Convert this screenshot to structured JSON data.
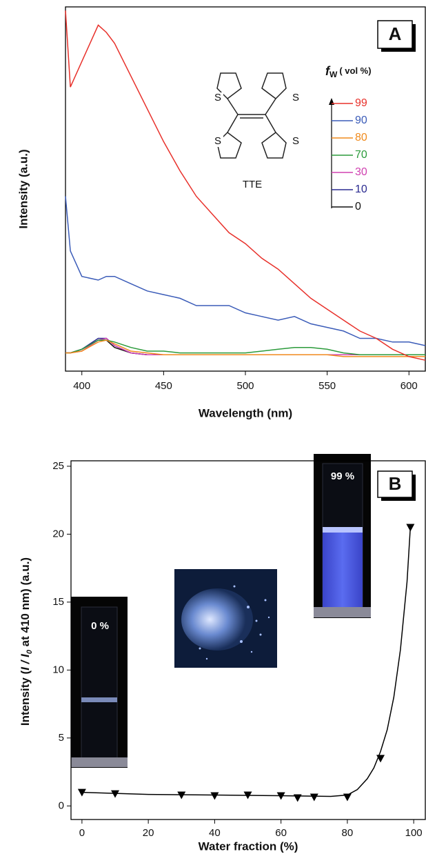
{
  "chart_data": [
    {
      "type": "line",
      "panel_label": "A",
      "x_label": "Wavelength (nm)",
      "y_label": "Intensity (a.u.)",
      "legend_title": [
        "f",
        "W",
        "( vol %)"
      ],
      "molecule": {
        "label": "TTE",
        "atoms": [
          "S",
          "S",
          "S",
          "S"
        ]
      },
      "x": [
        390,
        393,
        400,
        410,
        415,
        420,
        430,
        440,
        450,
        460,
        470,
        480,
        490,
        500,
        510,
        520,
        530,
        540,
        550,
        560,
        570,
        580,
        590,
        600,
        610
      ],
      "xlim": [
        390,
        610
      ],
      "xticks": [
        400,
        450,
        500,
        550,
        600
      ],
      "ylim": [
        0,
        100
      ],
      "series": [
        {
          "name": "99",
          "color": "#e8302a",
          "values": [
            99,
            78,
            85,
            95,
            93,
            90,
            81,
            72,
            63,
            55,
            48,
            43,
            38,
            35,
            31,
            28,
            24,
            20,
            17,
            14,
            11,
            9,
            6,
            4,
            3
          ]
        },
        {
          "name": "90",
          "color": "#3a5bb8",
          "values": [
            48,
            33,
            26,
            25,
            26,
            26,
            24,
            22,
            21,
            20,
            18,
            18,
            18,
            16,
            15,
            14,
            15,
            13,
            12,
            11,
            9,
            9,
            8,
            8,
            7
          ]
        },
        {
          "name": "80",
          "color": "#f08a1c",
          "values": [
            5,
            5,
            5.5,
            8,
            8.5,
            7.5,
            5.5,
            5,
            4.5,
            4.5,
            4.5,
            4.5,
            4.5,
            4.5,
            4.5,
            4.5,
            4.5,
            4.5,
            4.5,
            4,
            4,
            4,
            4,
            4,
            4
          ]
        },
        {
          "name": "70",
          "color": "#2a9a3a",
          "values": [
            5,
            5,
            6,
            8.5,
            8.5,
            8,
            6.5,
            5.5,
            5.5,
            5,
            5,
            5,
            5,
            5,
            5.5,
            6,
            6.5,
            6.5,
            6,
            5,
            4.5,
            4.5,
            4.5,
            4.5,
            4.5
          ]
        },
        {
          "name": "30",
          "color": "#d040b0",
          "values": [
            5,
            5,
            5.5,
            8.5,
            9,
            7,
            5,
            4.5,
            4.5,
            4.5,
            4.5,
            4.5,
            4.5,
            4.5,
            4.5,
            4.5,
            4.5,
            4.5,
            4.5,
            4.5,
            4.5,
            4.5,
            4.5,
            4.5,
            4.5
          ]
        },
        {
          "name": "10",
          "color": "#2a2a90",
          "values": [
            5,
            5,
            6,
            9,
            9,
            7,
            5,
            4.5,
            4.5,
            4.5,
            4.5,
            4.5,
            4.5,
            4.5,
            4.5,
            4.5,
            4.5,
            4.5,
            4.5,
            4.5,
            4.5,
            4.5,
            4.5,
            4.5,
            4.5
          ]
        },
        {
          "name": "0",
          "color": "#111111",
          "values": [
            5,
            5,
            6,
            8.5,
            8.5,
            6.5,
            5,
            4.5,
            4.5,
            4.5,
            4.5,
            4.5,
            4.5,
            4.5,
            4.5,
            4.5,
            4.5,
            4.5,
            4.5,
            4.5,
            4.5,
            4.5,
            4.5,
            4.5,
            4.5
          ]
        }
      ]
    },
    {
      "type": "scatter",
      "panel_label": "B",
      "x_label": "Water fraction (%)",
      "y_label": [
        "Intensity (",
        "I / I",
        "0",
        " at 410 nm) (a.u.)"
      ],
      "photo_labels": [
        "0 %",
        "99 %"
      ],
      "x": [
        0,
        10,
        30,
        40,
        50,
        60,
        65,
        70,
        80,
        90,
        99
      ],
      "values": [
        1.0,
        0.9,
        0.8,
        0.75,
        0.8,
        0.75,
        0.6,
        0.65,
        0.65,
        3.5,
        20.5
      ],
      "color": "#000000",
      "fit_curve": {
        "x": [
          0,
          20,
          40,
          60,
          75,
          80,
          83,
          86,
          88,
          90,
          92,
          94,
          96,
          98,
          99
        ],
        "values": [
          1.0,
          0.85,
          0.8,
          0.75,
          0.7,
          0.8,
          1.2,
          2.0,
          2.8,
          4.0,
          5.6,
          8.0,
          11.5,
          16.5,
          20.5
        ]
      },
      "xlim": [
        -3.3,
        103.5
      ],
      "xticks": [
        0,
        20,
        40,
        60,
        80,
        100
      ],
      "ylim": [
        -1,
        25.4
      ],
      "yticks": [
        0,
        5,
        10,
        15,
        20,
        25
      ]
    }
  ]
}
